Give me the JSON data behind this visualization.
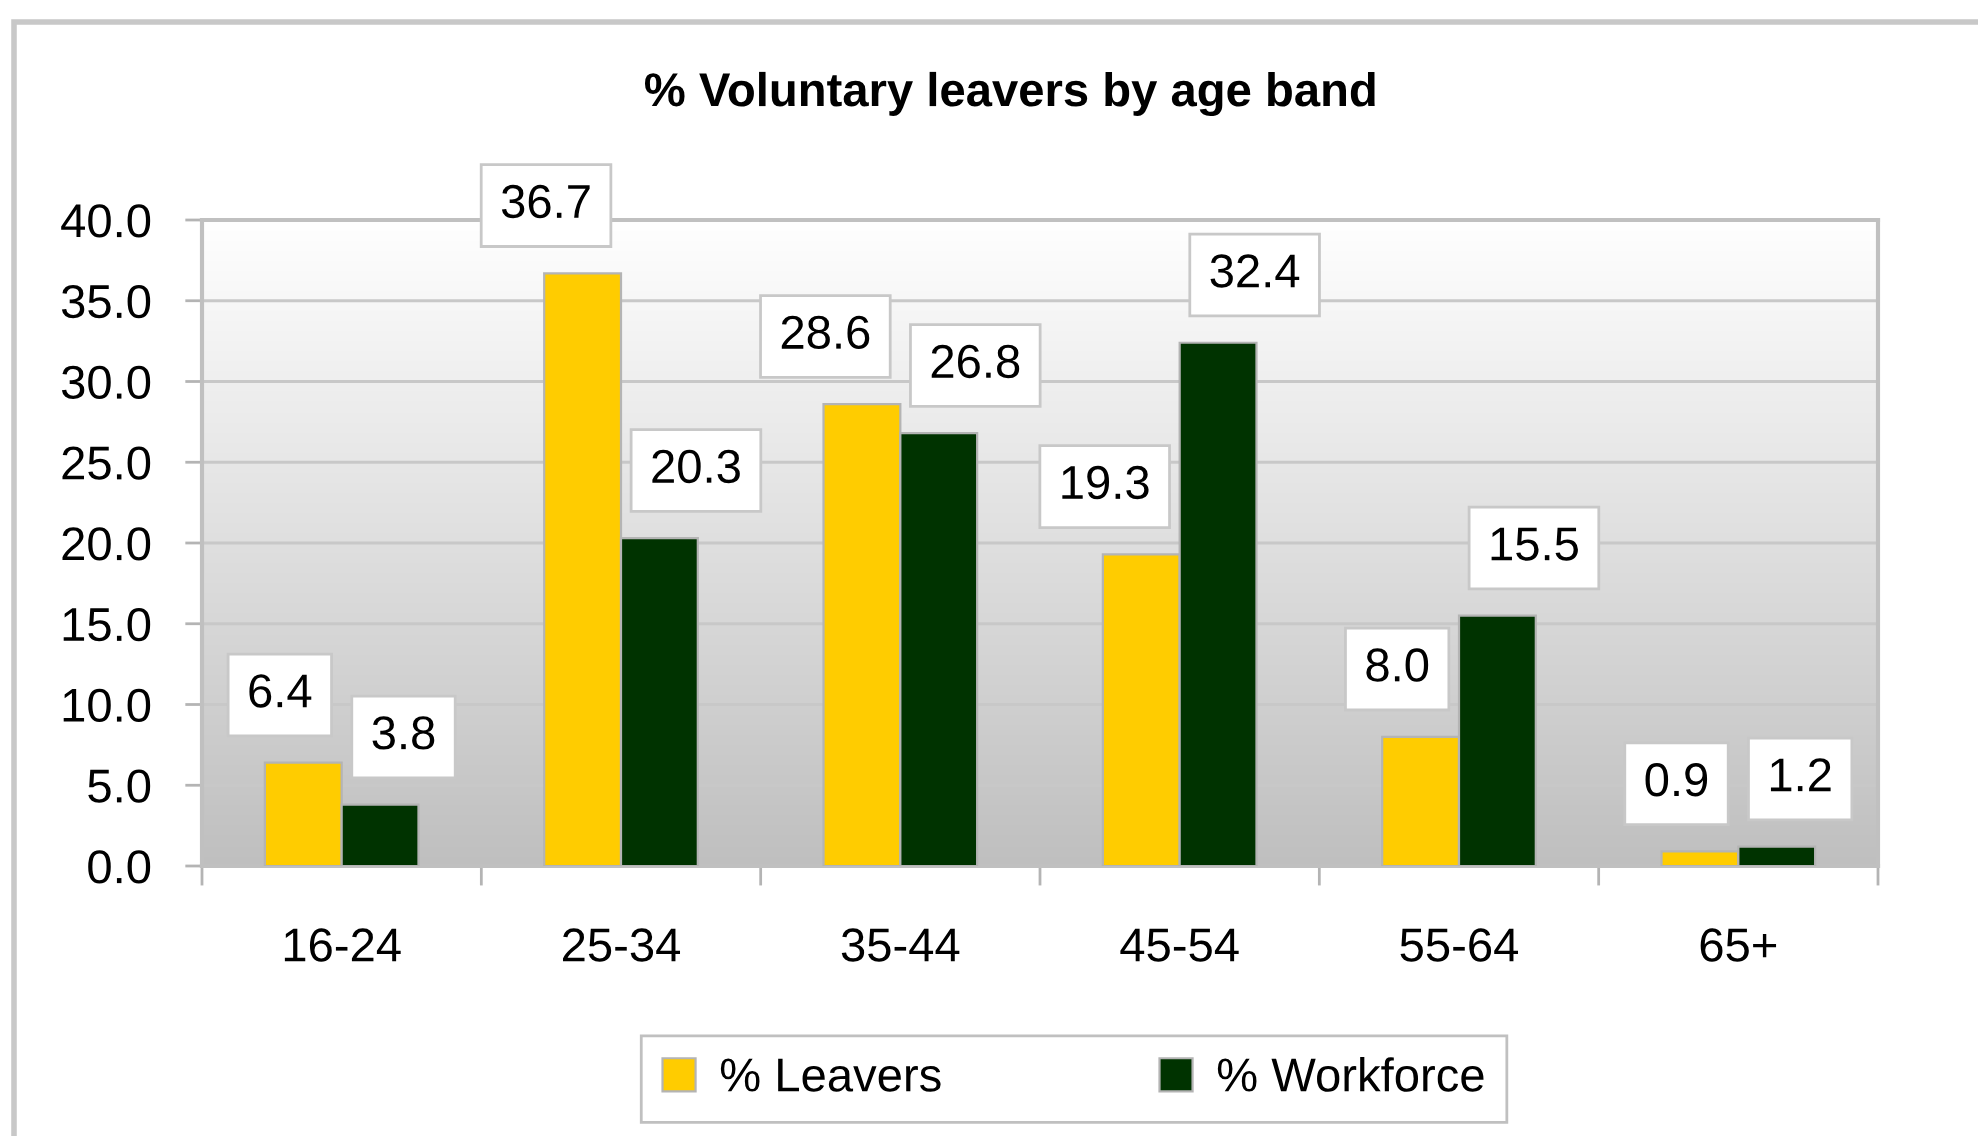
{
  "chart_data": {
    "type": "bar",
    "title": "% Voluntary leavers by age band",
    "categories": [
      "16-24",
      "25-34",
      "35-44",
      "45-54",
      "55-64",
      "65+"
    ],
    "series": [
      {
        "name": "% Leavers",
        "color": "#ffcc00",
        "values": [
          6.4,
          36.7,
          28.6,
          19.3,
          8.0,
          0.9
        ],
        "value_labels": [
          "6.4",
          "36.7",
          "28.6",
          "19.3",
          "8.0",
          "0.9"
        ]
      },
      {
        "name": "% Workforce",
        "color": "#003300",
        "values": [
          3.8,
          20.3,
          26.8,
          32.4,
          15.5,
          1.2
        ],
        "value_labels": [
          "3.8",
          "20.3",
          "26.8",
          "32.4",
          "15.5",
          "1.2"
        ]
      }
    ],
    "ylim": [
      0,
      40
    ],
    "yticks": [
      {
        "value": 0,
        "label": "0.0"
      },
      {
        "value": 5,
        "label": "5.0"
      },
      {
        "value": 10,
        "label": "10.0"
      },
      {
        "value": 15,
        "label": "15.0"
      },
      {
        "value": 20,
        "label": "20.0"
      },
      {
        "value": 25,
        "label": "25.0"
      },
      {
        "value": 30,
        "label": "30.0"
      },
      {
        "value": 35,
        "label": "35.0"
      },
      {
        "value": 40,
        "label": "40.0"
      }
    ],
    "grid": "y",
    "legend": "bottom"
  }
}
